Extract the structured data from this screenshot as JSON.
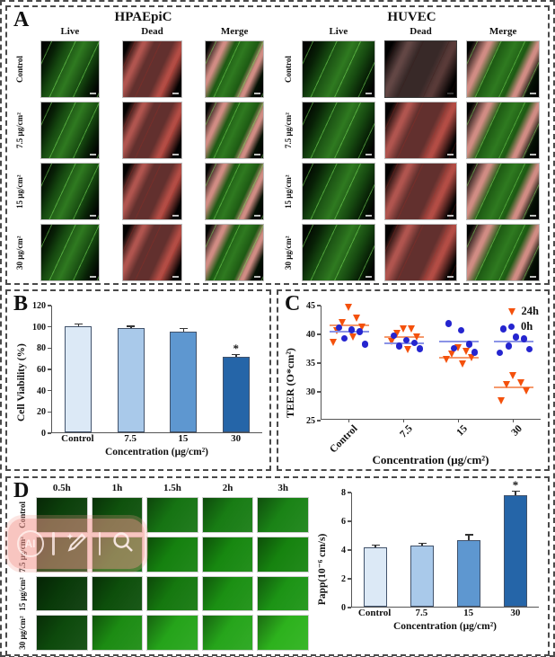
{
  "panelA": {
    "label": "A",
    "cell_lines": [
      {
        "title": "HPAEpiC",
        "columns": [
          "Live",
          "Dead",
          "Merge"
        ],
        "rows": [
          "Control",
          "7.5 μg/cm²",
          "15 μg/cm²",
          "30 μg/cm²"
        ]
      },
      {
        "title": "HUVEC",
        "columns": [
          "Live",
          "Dead",
          "Merge"
        ],
        "rows": [
          "Control",
          "7.5 μg/cm²",
          "15 μg/cm²",
          "30 μg/cm²"
        ]
      }
    ]
  },
  "panelB": {
    "label": "B"
  },
  "panelC": {
    "label": "C"
  },
  "panelD": {
    "label": "D",
    "time_columns": [
      "0.5h",
      "1h",
      "1.5h",
      "2h",
      "3h"
    ],
    "rows": [
      "Control",
      "7.5 μg/cm²",
      "15 μg/cm²",
      "30 μg/cm²"
    ],
    "cell_colors": [
      [
        "#0c400b",
        "#0f520d",
        "#167413",
        "#187c14",
        "#1a8316"
      ],
      [
        "#0c450b",
        "#117012",
        "#15810f",
        "#178810",
        "#16830f"
      ],
      [
        "#093a09",
        "#0d4f0b",
        "#15780f",
        "#1b9013",
        "#1c9415"
      ],
      [
        "#0d4a0c",
        "#1c8c13",
        "#25a41a",
        "#26a51b",
        "#2db21d"
      ]
    ]
  },
  "watermark": {
    "ai_label": "AI"
  },
  "chart_data": [
    {
      "id": "cell_viability",
      "type": "bar",
      "categories": [
        "Control",
        "7.5",
        "15",
        "30"
      ],
      "values": [
        100,
        97.8,
        94.8,
        71.3
      ],
      "errors": [
        1.2,
        1.2,
        2.2,
        1.2
      ],
      "significance": [
        "",
        "",
        "",
        "*"
      ],
      "ylabel": "Cell Viability (%)",
      "xlabel": "Concentration (μg/cm²)",
      "ylim": [
        0,
        120
      ],
      "yticks": [
        0,
        20,
        40,
        60,
        80,
        100,
        120
      ],
      "bar_colors": [
        "#dce9f6",
        "#a9c9ea",
        "#5e97d0",
        "#2565a8"
      ]
    },
    {
      "id": "teer",
      "type": "scatter",
      "categories": [
        "Control",
        "7.5",
        "15",
        "30"
      ],
      "ylabel": "TEER (O*cm²)",
      "xlabel": "Concentration (μg/cm²)",
      "ylim": [
        25,
        45
      ],
      "yticks": [
        25,
        30,
        35,
        40,
        45
      ],
      "legend_position": "top-right",
      "series": [
        {
          "name": "24h",
          "marker": "triangle-down",
          "color": "#f4510c",
          "mean_color": "#f59a6d",
          "values": [
            [
              44.7,
              42.8,
              42.0,
              41.2,
              40.6,
              39.5,
              38.6
            ],
            [
              41.0,
              40.9,
              40.1,
              39.6,
              38.7,
              37.3
            ],
            [
              37.6,
              37.1,
              36.5,
              36.0,
              35.6,
              34.8
            ],
            [
              32.8,
              31.6,
              31.2,
              30.1,
              28.4
            ]
          ],
          "means": [
            41.6,
            39.6,
            35.9,
            30.8
          ]
        },
        {
          "name": "0h",
          "marker": "circle",
          "color": "#2525cf",
          "mean_color": "#8a93e6",
          "values": [
            [
              41.2,
              40.8,
              40.5,
              39.3,
              38.3
            ],
            [
              39.8,
              39.0,
              38.5,
              38.0,
              37.5
            ],
            [
              41.9,
              40.7,
              38.3,
              37.6,
              36.9
            ],
            [
              40.9,
              39.5,
              39.2,
              38.0,
              37.4,
              36.8
            ]
          ],
          "means": [
            40.4,
            38.4,
            38.8,
            38.8
          ]
        }
      ]
    },
    {
      "id": "papp",
      "type": "bar",
      "categories": [
        "Control",
        "7.5",
        "15",
        "30"
      ],
      "values": [
        4.15,
        4.25,
        4.65,
        7.75
      ],
      "errors": [
        0.08,
        0.1,
        0.3,
        0.25
      ],
      "significance": [
        "",
        "",
        "",
        "*"
      ],
      "ylabel": "Papp(10⁻⁶ cm/s)",
      "xlabel": "Concentration (μg/cm²)",
      "ylim": [
        0,
        8
      ],
      "yticks": [
        0,
        2,
        4,
        6,
        8
      ],
      "bar_colors": [
        "#dce9f6",
        "#a9c9ea",
        "#5e97d0",
        "#2565a8"
      ]
    }
  ]
}
